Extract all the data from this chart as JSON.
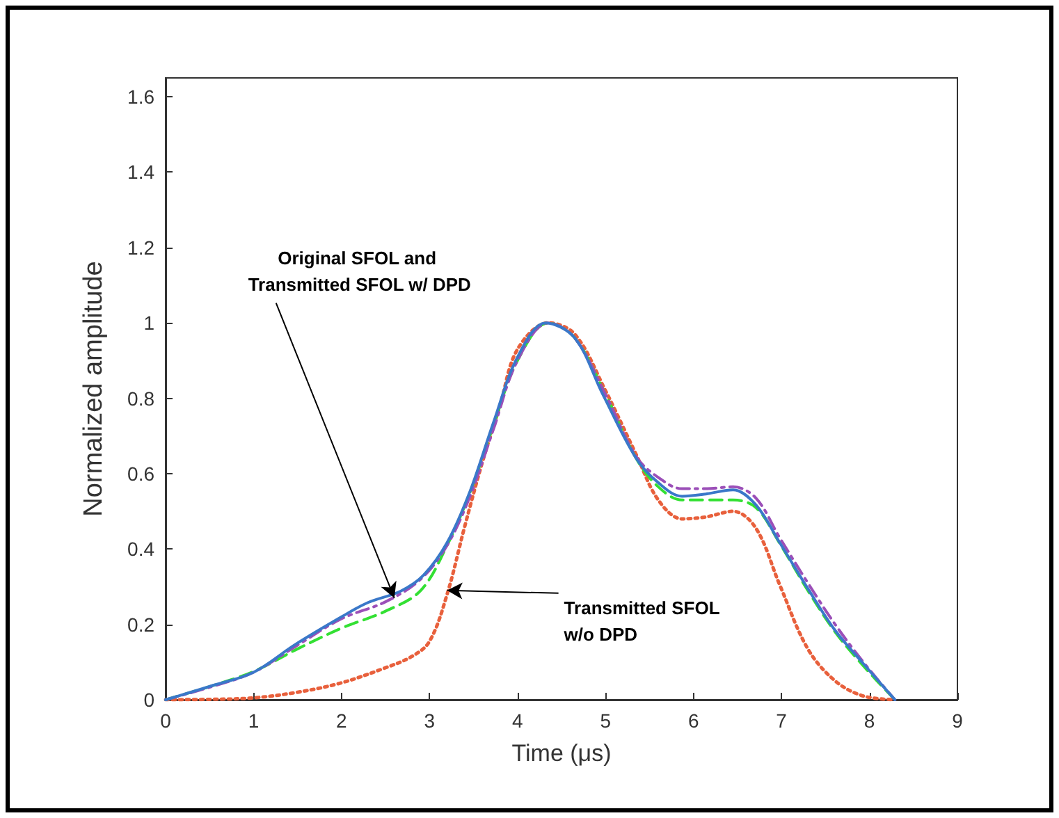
{
  "chart_data": {
    "type": "line",
    "xlabel": "Time (μs)",
    "ylabel": "Normalized amplitude",
    "xlim": [
      0,
      9
    ],
    "xticks": [
      0,
      1,
      2,
      3,
      4,
      5,
      6,
      7,
      8,
      9
    ],
    "ylim": [
      0,
      1.65
    ],
    "yticks": [
      0,
      0.2,
      0.4,
      0.6,
      0.8,
      1,
      1.2,
      1.4,
      1.6
    ],
    "grid": false,
    "marker": "none",
    "series": [
      {
        "color": "#e8603c",
        "line_style": "dotted",
        "x": [
          0,
          0.5,
          1,
          1.5,
          2,
          2.5,
          2.8,
          3,
          3.2,
          3.4,
          3.6,
          3.8,
          4,
          4.35,
          4.65,
          5,
          5.35,
          5.6,
          5.87,
          6.14,
          6.45,
          6.71,
          6.98,
          7.3,
          7.61,
          7.93,
          8.29
        ],
        "values": [
          0,
          0.001,
          0.005,
          0.02,
          0.045,
          0.085,
          0.115,
          0.155,
          0.28,
          0.46,
          0.63,
          0.78,
          0.93,
          1,
          0.97,
          0.82,
          0.65,
          0.53,
          0.48,
          0.485,
          0.5,
          0.455,
          0.305,
          0.135,
          0.05,
          0.01,
          0
        ]
      },
      {
        "color": "#33e033",
        "line_style": "dashed",
        "x": [
          0,
          0.5,
          1,
          1.5,
          2,
          2.5,
          2.9,
          3.2,
          3.46,
          3.73,
          4,
          4.35,
          4.65,
          5,
          5.35,
          5.6,
          5.87,
          6.14,
          6.45,
          6.71,
          6.98,
          7.3,
          7.61,
          7.93,
          8.29
        ],
        "values": [
          0,
          0.035,
          0.075,
          0.135,
          0.19,
          0.235,
          0.29,
          0.41,
          0.55,
          0.73,
          0.9,
          1,
          0.96,
          0.81,
          0.64,
          0.565,
          0.53,
          0.53,
          0.53,
          0.51,
          0.415,
          0.29,
          0.18,
          0.09,
          0
        ]
      },
      {
        "color": "#9b4fb8",
        "line_style": "dashdot",
        "x": [
          0,
          0.5,
          1,
          1.5,
          2,
          2.5,
          2.9,
          3.2,
          3.46,
          3.73,
          4,
          4.35,
          4.65,
          5,
          5.35,
          5.6,
          5.87,
          6.14,
          6.45,
          6.71,
          6.98,
          7.3,
          7.61,
          7.93,
          8.29
        ],
        "values": [
          0,
          0.033,
          0.073,
          0.145,
          0.215,
          0.26,
          0.32,
          0.41,
          0.54,
          0.72,
          0.9,
          1,
          0.96,
          0.81,
          0.645,
          0.59,
          0.56,
          0.56,
          0.565,
          0.535,
          0.43,
          0.31,
          0.2,
          0.1,
          0
        ]
      },
      {
        "color": "#3a78c9",
        "line_style": "solid",
        "x": [
          0,
          0.51,
          1,
          1.47,
          2,
          2.3,
          2.67,
          2.93,
          3.2,
          3.46,
          3.73,
          4,
          4.32,
          4.65,
          4.97,
          5.35,
          5.6,
          5.87,
          6.14,
          6.45,
          6.71,
          6.98,
          7.3,
          7.61,
          7.93,
          8.29
        ],
        "values": [
          0,
          0.036,
          0.073,
          0.146,
          0.22,
          0.258,
          0.288,
          0.33,
          0.417,
          0.553,
          0.738,
          0.909,
          1,
          0.96,
          0.81,
          0.64,
          0.576,
          0.54,
          0.546,
          0.557,
          0.517,
          0.417,
          0.295,
          0.184,
          0.096,
          0
        ]
      }
    ],
    "annotations": [
      {
        "text": "Original SFOL and Transmitted SFOL w/ DPD",
        "x": 2.6,
        "y": 0.27
      },
      {
        "text": "Transmitted SFOL w/o DPD",
        "x": 3.2,
        "y": 0.29
      }
    ]
  }
}
